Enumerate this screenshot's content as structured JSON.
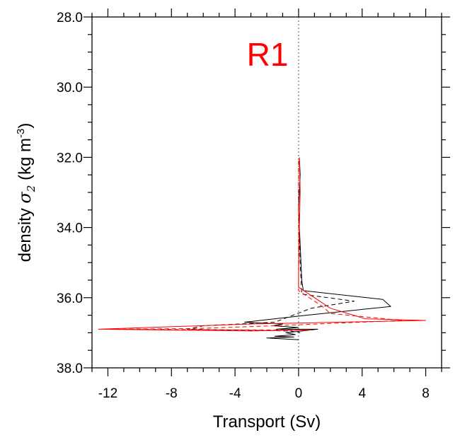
{
  "chart_data": {
    "type": "line",
    "panel_label": "R1",
    "panel_label_color": "#ff0000",
    "xlabel": "Transport (Sv)",
    "ylabel_prefix": "density ",
    "ylabel_symbol": "σ",
    "ylabel_subscript": "2",
    "ylabel_units": " (kg m",
    "ylabel_exponent": "-3",
    "ylabel_close": ")",
    "xlim": [
      -13,
      9
    ],
    "ylim": [
      38.0,
      28.0
    ],
    "y_inverted": true,
    "x_major_ticks": [
      -12,
      -8,
      -4,
      0,
      4,
      8
    ],
    "x_tick_labels": [
      "-12",
      "-8",
      "-4",
      "0",
      "4",
      "8"
    ],
    "x_minor_step": 1,
    "y_major_ticks": [
      28.0,
      30.0,
      32.0,
      34.0,
      36.0,
      38.0
    ],
    "y_tick_labels": [
      "28.0",
      "30.0",
      "32.0",
      "34.0",
      "36.0",
      "38.0"
    ],
    "y_minor_step": 0.5,
    "zero_line": {
      "x": 0,
      "style": "dotted",
      "color": "#555555"
    },
    "grid": false,
    "series": [
      {
        "color": "#000000",
        "dash": "solid",
        "points": [
          [
            0.05,
            32.0
          ],
          [
            0.1,
            32.5
          ],
          [
            0.0,
            33.5
          ],
          [
            0.1,
            34.5
          ],
          [
            0.2,
            35.5
          ],
          [
            0.3,
            35.8
          ],
          [
            5.3,
            36.05
          ],
          [
            5.8,
            36.25
          ],
          [
            0.5,
            36.5
          ],
          [
            -3.4,
            36.7
          ],
          [
            -1.0,
            36.75
          ],
          [
            -1.6,
            36.8
          ],
          [
            0.0,
            36.85
          ],
          [
            -1.4,
            36.9
          ],
          [
            1.2,
            36.9
          ],
          [
            -0.8,
            37.0
          ],
          [
            -0.2,
            37.05
          ],
          [
            -1.5,
            37.1
          ],
          [
            -0.3,
            37.12
          ],
          [
            -2.0,
            37.15
          ],
          [
            0.0,
            37.2
          ]
        ]
      },
      {
        "color": "#000000",
        "dash": "dashed",
        "points": [
          [
            0.0,
            32.1
          ],
          [
            0.0,
            33.5
          ],
          [
            0.1,
            35.0
          ],
          [
            0.2,
            35.9
          ],
          [
            3.5,
            36.1
          ],
          [
            0.8,
            36.3
          ],
          [
            -1.5,
            36.7
          ],
          [
            -6.0,
            36.8
          ],
          [
            -7.0,
            36.9
          ],
          [
            -0.5,
            36.95
          ],
          [
            0.1,
            37.0
          ]
        ]
      },
      {
        "color": "#ff0000",
        "dash": "solid",
        "points": [
          [
            0.05,
            32.0
          ],
          [
            0.1,
            33.0
          ],
          [
            0.05,
            34.0
          ],
          [
            0.0,
            35.5
          ],
          [
            0.0,
            35.7
          ],
          [
            2.0,
            36.3
          ],
          [
            4.2,
            36.6
          ],
          [
            8.0,
            36.65
          ],
          [
            -3.0,
            36.75
          ],
          [
            -12.6,
            36.9
          ],
          [
            -3.0,
            36.95
          ],
          [
            0.8,
            36.92
          ]
        ]
      },
      {
        "color": "#ff0000",
        "dash": "dashed",
        "points": [
          [
            0.0,
            32.1
          ],
          [
            0.0,
            34.0
          ],
          [
            0.0,
            35.8
          ],
          [
            1.5,
            36.25
          ],
          [
            2.0,
            36.45
          ],
          [
            6.5,
            36.65
          ],
          [
            -1.5,
            36.8
          ],
          [
            -6.5,
            36.88
          ],
          [
            -12.0,
            36.9
          ],
          [
            -2.0,
            36.92
          ],
          [
            0.5,
            36.93
          ]
        ]
      }
    ]
  }
}
